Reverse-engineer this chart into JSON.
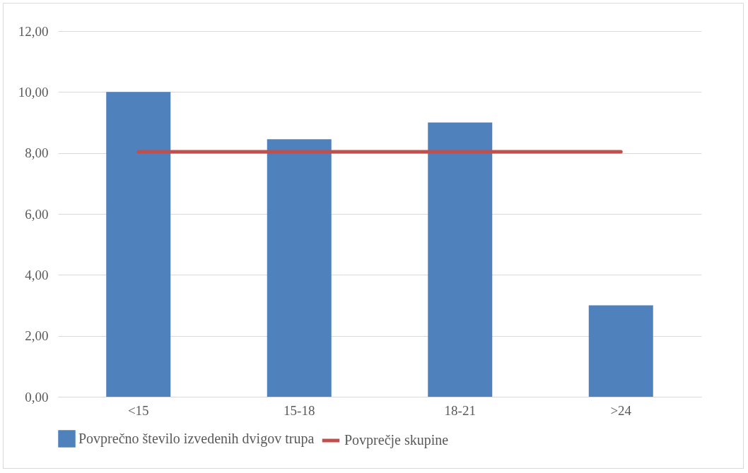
{
  "chart_data": {
    "type": "bar",
    "categories": [
      "<15",
      "15-18",
      "18-21",
      ">24"
    ],
    "series": [
      {
        "name": "Povprečno število izvedenih dvigov trupa",
        "color": "#4f81bd",
        "values": [
          10.0,
          8.45,
          9.0,
          3.0
        ]
      },
      {
        "name": "Povprečje skupine",
        "type": "line",
        "color": "#c0504d",
        "values": [
          8.04,
          8.04,
          8.04,
          8.04
        ]
      }
    ],
    "ylim": [
      0,
      12
    ],
    "yticks": [
      {
        "value": 0,
        "label": "0,00"
      },
      {
        "value": 2,
        "label": "2,00"
      },
      {
        "value": 4,
        "label": "4,00"
      },
      {
        "value": 6,
        "label": "6,00"
      },
      {
        "value": 8,
        "label": "8,00"
      },
      {
        "value": 10,
        "label": "10,00"
      },
      {
        "value": 12,
        "label": "12,00"
      }
    ],
    "grid": "y",
    "legend": "bottom"
  }
}
